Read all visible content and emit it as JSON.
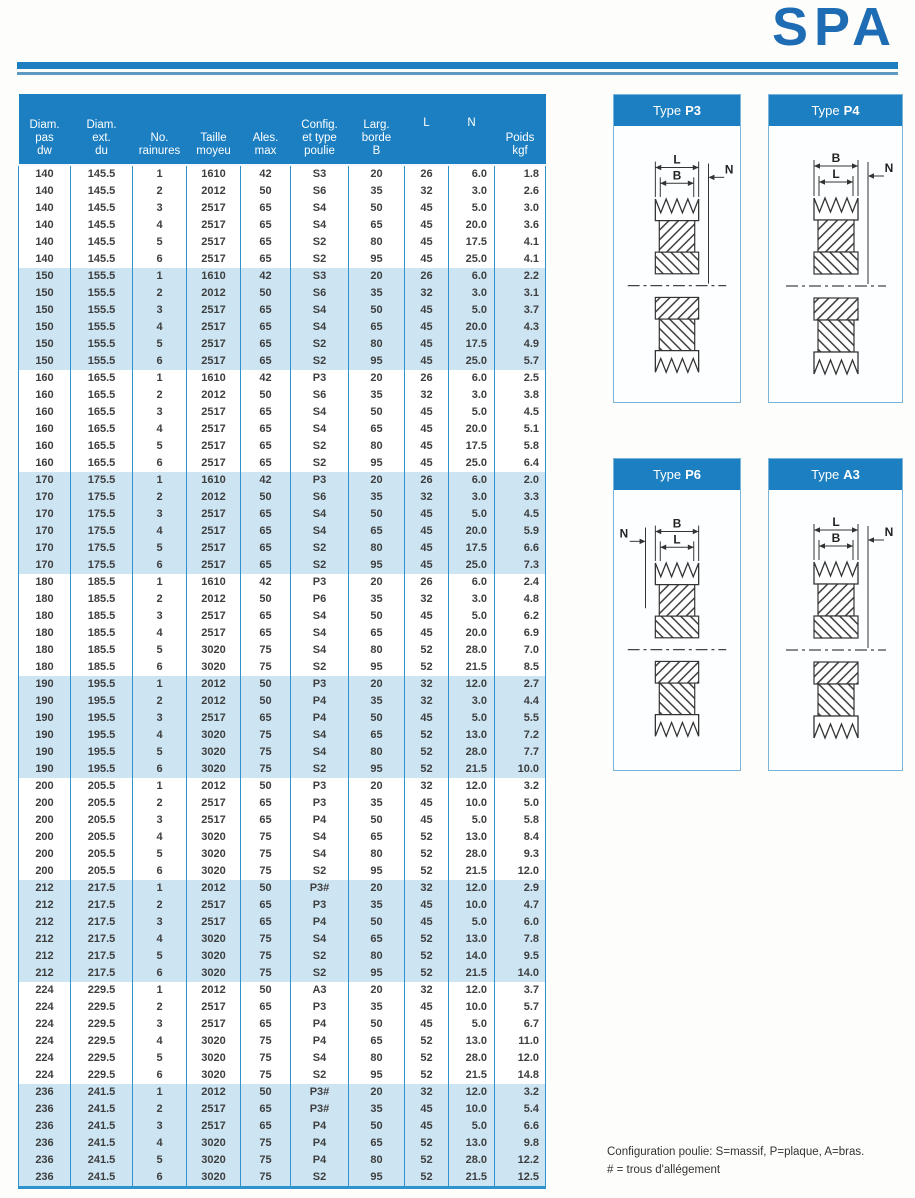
{
  "header": {
    "logo": "SPA"
  },
  "table": {
    "column_headers": [
      [
        "Diam.",
        "pas",
        "dw"
      ],
      [
        "Diam.",
        "ext.",
        "du"
      ],
      [
        "No.",
        "rainures"
      ],
      [
        "Taille",
        "moyeu"
      ],
      [
        "Ales.",
        "max"
      ],
      [
        "Config.",
        "et type",
        "poulie"
      ],
      [
        "Larg.",
        "borde",
        "B"
      ],
      [
        "L"
      ],
      [
        "N"
      ],
      [
        "Poids",
        "kgf"
      ]
    ],
    "groups": [
      {
        "rows": [
          [
            "140",
            "145.5",
            "1",
            "1610",
            "42",
            "S3",
            "20",
            "26",
            "6.0",
            "1.8"
          ],
          [
            "140",
            "145.5",
            "2",
            "2012",
            "50",
            "S6",
            "35",
            "32",
            "3.0",
            "2.6"
          ],
          [
            "140",
            "145.5",
            "3",
            "2517",
            "65",
            "S4",
            "50",
            "45",
            "5.0",
            "3.0"
          ],
          [
            "140",
            "145.5",
            "4",
            "2517",
            "65",
            "S4",
            "65",
            "45",
            "20.0",
            "3.6"
          ],
          [
            "140",
            "145.5",
            "5",
            "2517",
            "65",
            "S2",
            "80",
            "45",
            "17.5",
            "4.1"
          ],
          [
            "140",
            "145.5",
            "6",
            "2517",
            "65",
            "S2",
            "95",
            "45",
            "25.0",
            "4.1"
          ]
        ]
      },
      {
        "rows": [
          [
            "150",
            "155.5",
            "1",
            "1610",
            "42",
            "S3",
            "20",
            "26",
            "6.0",
            "2.2"
          ],
          [
            "150",
            "155.5",
            "2",
            "2012",
            "50",
            "S6",
            "35",
            "32",
            "3.0",
            "3.1"
          ],
          [
            "150",
            "155.5",
            "3",
            "2517",
            "65",
            "S4",
            "50",
            "45",
            "5.0",
            "3.7"
          ],
          [
            "150",
            "155.5",
            "4",
            "2517",
            "65",
            "S4",
            "65",
            "45",
            "20.0",
            "4.3"
          ],
          [
            "150",
            "155.5",
            "5",
            "2517",
            "65",
            "S2",
            "80",
            "45",
            "17.5",
            "4.9"
          ],
          [
            "150",
            "155.5",
            "6",
            "2517",
            "65",
            "S2",
            "95",
            "45",
            "25.0",
            "5.7"
          ]
        ]
      },
      {
        "rows": [
          [
            "160",
            "165.5",
            "1",
            "1610",
            "42",
            "P3",
            "20",
            "26",
            "6.0",
            "2.5"
          ],
          [
            "160",
            "165.5",
            "2",
            "2012",
            "50",
            "S6",
            "35",
            "32",
            "3.0",
            "3.8"
          ],
          [
            "160",
            "165.5",
            "3",
            "2517",
            "65",
            "S4",
            "50",
            "45",
            "5.0",
            "4.5"
          ],
          [
            "160",
            "165.5",
            "4",
            "2517",
            "65",
            "S4",
            "65",
            "45",
            "20.0",
            "5.1"
          ],
          [
            "160",
            "165.5",
            "5",
            "2517",
            "65",
            "S2",
            "80",
            "45",
            "17.5",
            "5.8"
          ],
          [
            "160",
            "165.5",
            "6",
            "2517",
            "65",
            "S2",
            "95",
            "45",
            "25.0",
            "6.4"
          ]
        ]
      },
      {
        "rows": [
          [
            "170",
            "175.5",
            "1",
            "1610",
            "42",
            "P3",
            "20",
            "26",
            "6.0",
            "2.0"
          ],
          [
            "170",
            "175.5",
            "2",
            "2012",
            "50",
            "S6",
            "35",
            "32",
            "3.0",
            "3.3"
          ],
          [
            "170",
            "175.5",
            "3",
            "2517",
            "65",
            "S4",
            "50",
            "45",
            "5.0",
            "4.5"
          ],
          [
            "170",
            "175.5",
            "4",
            "2517",
            "65",
            "S4",
            "65",
            "45",
            "20.0",
            "5.9"
          ],
          [
            "170",
            "175.5",
            "5",
            "2517",
            "65",
            "S2",
            "80",
            "45",
            "17.5",
            "6.6"
          ],
          [
            "170",
            "175.5",
            "6",
            "2517",
            "65",
            "S2",
            "95",
            "45",
            "25.0",
            "7.3"
          ]
        ]
      },
      {
        "rows": [
          [
            "180",
            "185.5",
            "1",
            "1610",
            "42",
            "P3",
            "20",
            "26",
            "6.0",
            "2.4"
          ],
          [
            "180",
            "185.5",
            "2",
            "2012",
            "50",
            "P6",
            "35",
            "32",
            "3.0",
            "4.8"
          ],
          [
            "180",
            "185.5",
            "3",
            "2517",
            "65",
            "S4",
            "50",
            "45",
            "5.0",
            "6.2"
          ],
          [
            "180",
            "185.5",
            "4",
            "2517",
            "65",
            "S4",
            "65",
            "45",
            "20.0",
            "6.9"
          ],
          [
            "180",
            "185.5",
            "5",
            "3020",
            "75",
            "S4",
            "80",
            "52",
            "28.0",
            "7.0"
          ],
          [
            "180",
            "185.5",
            "6",
            "3020",
            "75",
            "S2",
            "95",
            "52",
            "21.5",
            "8.5"
          ]
        ]
      },
      {
        "rows": [
          [
            "190",
            "195.5",
            "1",
            "2012",
            "50",
            "P3",
            "20",
            "32",
            "12.0",
            "2.7"
          ],
          [
            "190",
            "195.5",
            "2",
            "2012",
            "50",
            "P4",
            "35",
            "32",
            "3.0",
            "4.4"
          ],
          [
            "190",
            "195.5",
            "3",
            "2517",
            "65",
            "P4",
            "50",
            "45",
            "5.0",
            "5.5"
          ],
          [
            "190",
            "195.5",
            "4",
            "3020",
            "75",
            "S4",
            "65",
            "52",
            "13.0",
            "7.2"
          ],
          [
            "190",
            "195.5",
            "5",
            "3020",
            "75",
            "S4",
            "80",
            "52",
            "28.0",
            "7.7"
          ],
          [
            "190",
            "195.5",
            "6",
            "3020",
            "75",
            "S2",
            "95",
            "52",
            "21.5",
            "10.0"
          ]
        ]
      },
      {
        "rows": [
          [
            "200",
            "205.5",
            "1",
            "2012",
            "50",
            "P3",
            "20",
            "32",
            "12.0",
            "3.2"
          ],
          [
            "200",
            "205.5",
            "2",
            "2517",
            "65",
            "P3",
            "35",
            "45",
            "10.0",
            "5.0"
          ],
          [
            "200",
            "205.5",
            "3",
            "2517",
            "65",
            "P4",
            "50",
            "45",
            "5.0",
            "5.8"
          ],
          [
            "200",
            "205.5",
            "4",
            "3020",
            "75",
            "S4",
            "65",
            "52",
            "13.0",
            "8.4"
          ],
          [
            "200",
            "205.5",
            "5",
            "3020",
            "75",
            "S4",
            "80",
            "52",
            "28.0",
            "9.3"
          ],
          [
            "200",
            "205.5",
            "6",
            "3020",
            "75",
            "S2",
            "95",
            "52",
            "21.5",
            "12.0"
          ]
        ]
      },
      {
        "rows": [
          [
            "212",
            "217.5",
            "1",
            "2012",
            "50",
            "P3#",
            "20",
            "32",
            "12.0",
            "2.9"
          ],
          [
            "212",
            "217.5",
            "2",
            "2517",
            "65",
            "P3",
            "35",
            "45",
            "10.0",
            "4.7"
          ],
          [
            "212",
            "217.5",
            "3",
            "2517",
            "65",
            "P4",
            "50",
            "45",
            "5.0",
            "6.0"
          ],
          [
            "212",
            "217.5",
            "4",
            "3020",
            "75",
            "S4",
            "65",
            "52",
            "13.0",
            "7.8"
          ],
          [
            "212",
            "217.5",
            "5",
            "3020",
            "75",
            "S2",
            "80",
            "52",
            "14.0",
            "9.5"
          ],
          [
            "212",
            "217.5",
            "6",
            "3020",
            "75",
            "S2",
            "95",
            "52",
            "21.5",
            "14.0"
          ]
        ]
      },
      {
        "rows": [
          [
            "224",
            "229.5",
            "1",
            "2012",
            "50",
            "A3",
            "20",
            "32",
            "12.0",
            "3.7"
          ],
          [
            "224",
            "229.5",
            "2",
            "2517",
            "65",
            "P3",
            "35",
            "45",
            "10.0",
            "5.7"
          ],
          [
            "224",
            "229.5",
            "3",
            "2517",
            "65",
            "P4",
            "50",
            "45",
            "5.0",
            "6.7"
          ],
          [
            "224",
            "229.5",
            "4",
            "3020",
            "75",
            "P4",
            "65",
            "52",
            "13.0",
            "11.0"
          ],
          [
            "224",
            "229.5",
            "5",
            "3020",
            "75",
            "S4",
            "80",
            "52",
            "28.0",
            "12.0"
          ],
          [
            "224",
            "229.5",
            "6",
            "3020",
            "75",
            "S2",
            "95",
            "52",
            "21.5",
            "14.8"
          ]
        ]
      },
      {
        "rows": [
          [
            "236",
            "241.5",
            "1",
            "2012",
            "50",
            "P3#",
            "20",
            "32",
            "12.0",
            "3.2"
          ],
          [
            "236",
            "241.5",
            "2",
            "2517",
            "65",
            "P3#",
            "35",
            "45",
            "10.0",
            "5.4"
          ],
          [
            "236",
            "241.5",
            "3",
            "2517",
            "65",
            "P4",
            "50",
            "45",
            "5.0",
            "6.6"
          ],
          [
            "236",
            "241.5",
            "4",
            "3020",
            "75",
            "P4",
            "65",
            "52",
            "13.0",
            "9.8"
          ],
          [
            "236",
            "241.5",
            "5",
            "3020",
            "75",
            "P4",
            "80",
            "52",
            "28.0",
            "12.2"
          ],
          [
            "236",
            "241.5",
            "6",
            "3020",
            "75",
            "S2",
            "95",
            "52",
            "21.5",
            "12.5"
          ]
        ]
      }
    ]
  },
  "panels": [
    {
      "title_prefix": "Type",
      "title_code": "P3",
      "outer_dim": "L",
      "inner_dim": "B",
      "n_label": "N",
      "n_side": "right"
    },
    {
      "title_prefix": "Type",
      "title_code": "P4",
      "outer_dim": "B",
      "inner_dim": "L",
      "n_label": "N",
      "n_side": "right"
    },
    {
      "title_prefix": "Type",
      "title_code": "P6",
      "outer_dim": "B",
      "inner_dim": "L",
      "n_label": "N",
      "n_side": "left"
    },
    {
      "title_prefix": "Type",
      "title_code": "A3",
      "outer_dim": "L",
      "inner_dim": "B",
      "n_label": "N",
      "n_side": "right"
    }
  ],
  "footnote": {
    "line1": "Configuration poulie: S=massif, P=plaque, A=bras.",
    "line2": "# = trous d'allégement"
  },
  "colors": {
    "header_blue": "#1c7fc2",
    "row_shade": "#cde5f3",
    "border_blue": "#2e93cc",
    "logo_blue": "#1e6db4",
    "rule_thick": "#1d7fc0",
    "rule_thin": "#5e9ac2"
  }
}
